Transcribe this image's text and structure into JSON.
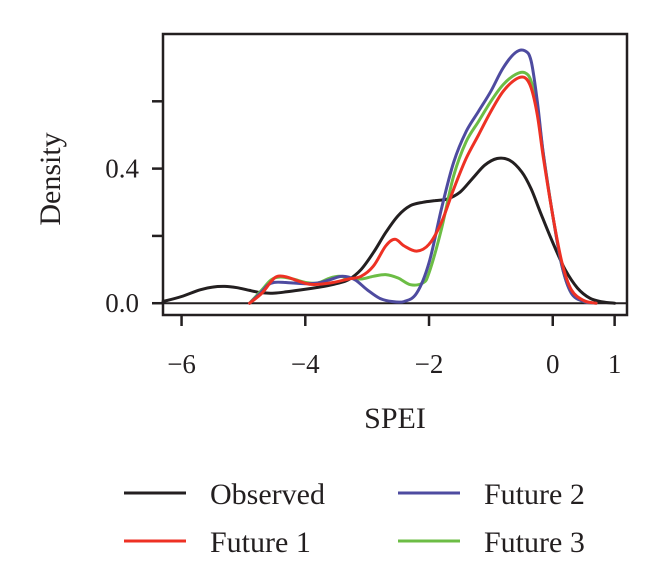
{
  "chart_data": {
    "type": "line",
    "xlabel": "SPEI",
    "ylabel": "Density",
    "xlim": [
      -6.3,
      1.2
    ],
    "ylim": [
      -0.035,
      0.8
    ],
    "x_ticks": [
      -6,
      -4,
      -2,
      0,
      1
    ],
    "x_tick_labels": [
      "−6",
      "−4",
      "−2",
      "0",
      "1"
    ],
    "y_ticks": [
      0.0,
      0.2,
      0.4,
      0.6
    ],
    "y_tick_labels": [
      "0.0",
      "",
      "0.4",
      ""
    ],
    "grid": false,
    "legend_position": "bottom",
    "series": [
      {
        "name": "Observed",
        "color": "#231f20",
        "x": [
          -6.3,
          -6.0,
          -5.7,
          -5.5,
          -5.3,
          -5.1,
          -4.9,
          -4.7,
          -4.5,
          -4.3,
          -4.1,
          -3.9,
          -3.7,
          -3.5,
          -3.3,
          -3.1,
          -2.9,
          -2.7,
          -2.5,
          -2.3,
          -2.1,
          -1.9,
          -1.7,
          -1.5,
          -1.3,
          -1.1,
          -0.9,
          -0.7,
          -0.5,
          -0.35,
          -0.2,
          0.0,
          0.2,
          0.4,
          0.6,
          0.8,
          1.0
        ],
        "values": [
          0.005,
          0.02,
          0.04,
          0.048,
          0.05,
          0.046,
          0.038,
          0.031,
          0.03,
          0.034,
          0.039,
          0.044,
          0.05,
          0.058,
          0.07,
          0.1,
          0.15,
          0.21,
          0.26,
          0.29,
          0.3,
          0.305,
          0.31,
          0.33,
          0.37,
          0.41,
          0.43,
          0.425,
          0.39,
          0.34,
          0.27,
          0.18,
          0.1,
          0.045,
          0.015,
          0.004,
          0.0
        ]
      },
      {
        "name": "Future 1",
        "color": "#ee3124",
        "x": [
          -4.9,
          -4.7,
          -4.55,
          -4.45,
          -4.3,
          -4.1,
          -3.9,
          -3.6,
          -3.3,
          -3.1,
          -2.9,
          -2.7,
          -2.55,
          -2.4,
          -2.2,
          -2.0,
          -1.8,
          -1.6,
          -1.4,
          -1.2,
          -1.0,
          -0.8,
          -0.6,
          -0.45,
          -0.35,
          -0.25,
          -0.15,
          0.0,
          0.15,
          0.3,
          0.5,
          0.7
        ],
        "values": [
          0.0,
          0.03,
          0.065,
          0.08,
          0.078,
          0.065,
          0.056,
          0.06,
          0.072,
          0.08,
          0.11,
          0.17,
          0.19,
          0.17,
          0.155,
          0.175,
          0.24,
          0.34,
          0.43,
          0.5,
          0.57,
          0.63,
          0.665,
          0.67,
          0.64,
          0.56,
          0.43,
          0.26,
          0.12,
          0.04,
          0.008,
          0.0
        ]
      },
      {
        "name": "Future 2",
        "color": "#4e4ba0",
        "x": [
          -4.9,
          -4.7,
          -4.6,
          -4.5,
          -4.35,
          -4.2,
          -4.0,
          -3.8,
          -3.6,
          -3.4,
          -3.2,
          -3.0,
          -2.8,
          -2.6,
          -2.4,
          -2.2,
          -2.0,
          -1.8,
          -1.6,
          -1.4,
          -1.2,
          -1.0,
          -0.8,
          -0.6,
          -0.45,
          -0.35,
          -0.25,
          -0.15,
          0.0,
          0.15,
          0.3,
          0.5,
          0.7
        ],
        "values": [
          0.0,
          0.035,
          0.055,
          0.062,
          0.062,
          0.06,
          0.058,
          0.06,
          0.07,
          0.08,
          0.07,
          0.04,
          0.015,
          0.005,
          0.005,
          0.03,
          0.12,
          0.28,
          0.42,
          0.51,
          0.57,
          0.63,
          0.7,
          0.745,
          0.75,
          0.72,
          0.6,
          0.44,
          0.26,
          0.11,
          0.03,
          0.005,
          0.0
        ]
      },
      {
        "name": "Future 3",
        "color": "#6cbd45",
        "x": [
          -4.9,
          -4.7,
          -4.55,
          -4.4,
          -4.2,
          -4.0,
          -3.8,
          -3.6,
          -3.45,
          -3.3,
          -3.1,
          -2.9,
          -2.7,
          -2.5,
          -2.3,
          -2.1,
          -2.0,
          -1.8,
          -1.6,
          -1.4,
          -1.2,
          -1.0,
          -0.8,
          -0.6,
          -0.45,
          -0.35,
          -0.25,
          -0.15,
          0.0,
          0.15,
          0.3,
          0.5,
          0.7
        ],
        "values": [
          0.0,
          0.04,
          0.07,
          0.078,
          0.072,
          0.062,
          0.06,
          0.075,
          0.08,
          0.075,
          0.072,
          0.08,
          0.085,
          0.075,
          0.055,
          0.06,
          0.09,
          0.22,
          0.38,
          0.48,
          0.54,
          0.6,
          0.65,
          0.68,
          0.685,
          0.66,
          0.58,
          0.44,
          0.26,
          0.11,
          0.03,
          0.005,
          0.0
        ]
      }
    ]
  }
}
